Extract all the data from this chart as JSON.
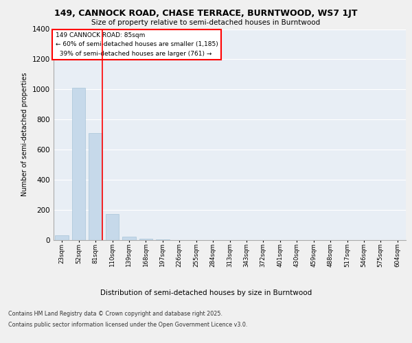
{
  "title1": "149, CANNOCK ROAD, CHASE TERRACE, BURNTWOOD, WS7 1JT",
  "title2": "Size of property relative to semi-detached houses in Burntwood",
  "xlabel": "Distribution of semi-detached houses by size in Burntwood",
  "ylabel": "Number of semi-detached properties",
  "bins": [
    "23sqm",
    "52sqm",
    "81sqm",
    "110sqm",
    "139sqm",
    "168sqm",
    "197sqm",
    "226sqm",
    "255sqm",
    "284sqm",
    "313sqm",
    "343sqm",
    "372sqm",
    "401sqm",
    "430sqm",
    "459sqm",
    "488sqm",
    "517sqm",
    "546sqm",
    "575sqm",
    "604sqm"
  ],
  "values": [
    30,
    1010,
    710,
    175,
    25,
    10,
    4,
    0,
    0,
    0,
    0,
    0,
    0,
    0,
    0,
    0,
    0,
    0,
    0,
    0,
    0
  ],
  "bar_color": "#c6d9ea",
  "bar_edge_color": "#a8c4d8",
  "red_line_bin_index": 2,
  "property_sqm": 85,
  "pct_smaller": 60,
  "count_smaller": 1185,
  "pct_larger": 39,
  "count_larger": 761,
  "annotation_label": "149 CANNOCK ROAD: 85sqm",
  "ylim": [
    0,
    1400
  ],
  "yticks": [
    0,
    200,
    400,
    600,
    800,
    1000,
    1200,
    1400
  ],
  "fig_bg": "#f0f0f0",
  "plot_bg": "#e8eef5",
  "footer1": "Contains HM Land Registry data © Crown copyright and database right 2025.",
  "footer2": "Contains public sector information licensed under the Open Government Licence v3.0."
}
